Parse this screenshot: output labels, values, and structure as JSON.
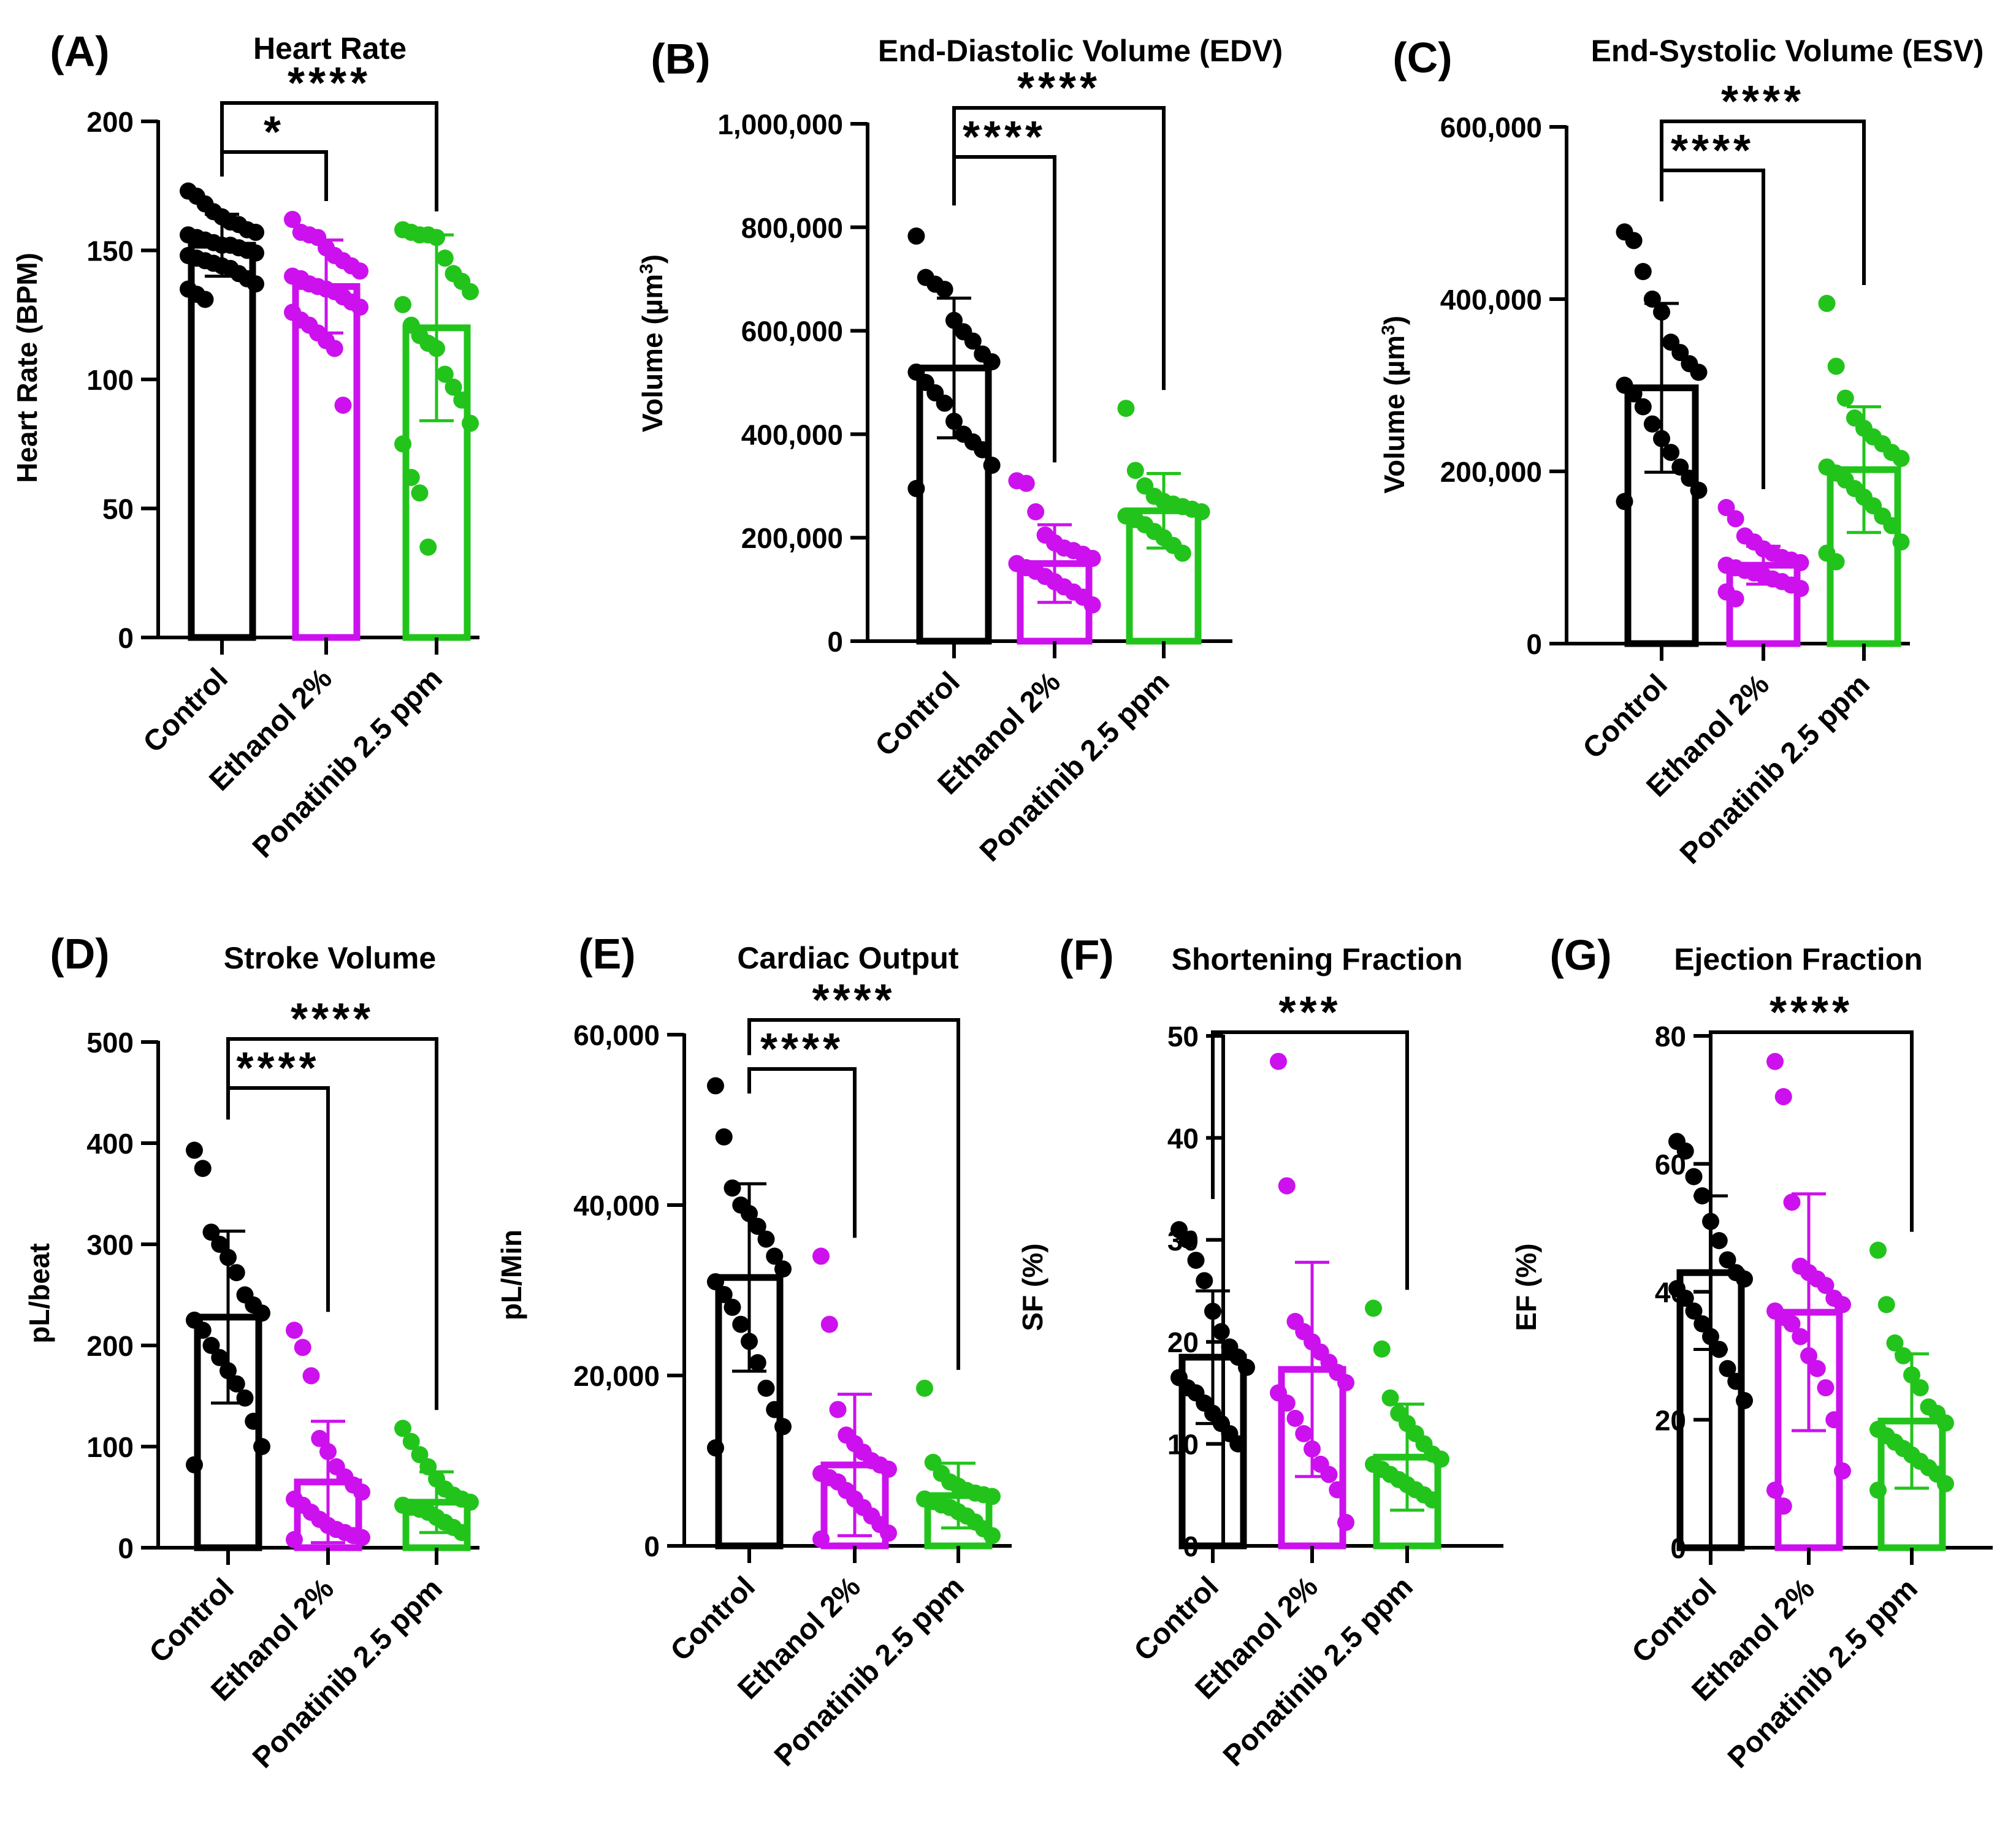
{
  "categories": [
    "Control",
    "Ethanol 2%",
    "Ponatinib 2.5 ppm"
  ],
  "colors": [
    "#000000",
    "#cc11ee",
    "#22c41c"
  ],
  "chart_data": [
    {
      "letter": "(A)",
      "type": "bar",
      "title": "Heart Rate",
      "ylabel": "Heart Rate (BPM)",
      "ylim": [
        0,
        200
      ],
      "ticks": [
        0,
        50,
        100,
        150,
        200
      ],
      "tick_labels": [
        "0",
        "50",
        "100",
        "150",
        "200"
      ],
      "series": [
        {
          "name": "Control",
          "mean": 152,
          "sd": 12,
          "points": [
            173,
            171,
            168,
            165,
            163,
            161,
            160,
            158,
            157,
            156,
            155,
            154,
            153,
            152,
            152,
            151,
            150,
            149,
            148,
            147,
            146,
            145,
            144,
            143,
            141,
            139,
            137,
            135,
            133,
            131
          ]
        },
        {
          "name": "Ethanol 2%",
          "mean": 136,
          "sd": 18,
          "points": [
            162,
            157,
            156,
            155,
            151,
            148,
            146,
            144,
            142,
            140,
            139,
            137,
            136,
            135,
            134,
            132,
            130,
            128,
            126,
            123,
            121,
            118,
            115,
            112,
            90
          ]
        },
        {
          "name": "Ponatinib 2.5 ppm",
          "mean": 120,
          "sd": 36,
          "points": [
            158,
            157,
            156,
            156,
            155,
            147,
            141,
            138,
            134,
            129,
            121,
            117,
            114,
            112,
            102,
            97,
            92,
            83,
            75,
            62,
            56,
            35
          ]
        }
      ],
      "comparisons": [
        {
          "from": 0,
          "to": 1,
          "label": "*"
        },
        {
          "from": 0,
          "to": 2,
          "label": "****"
        }
      ]
    },
    {
      "letter": "(B)",
      "type": "bar",
      "title": "End-Diastolic Volume (EDV)",
      "ylabel": "Volume (µm",
      "ylabel_sup": "3",
      "ylabel_end": ")",
      "ylim": [
        0,
        1000000
      ],
      "ticks": [
        0,
        200000,
        400000,
        600000,
        800000,
        1000000
      ],
      "tick_labels": [
        "0",
        "200,000",
        "400,000",
        "600,000",
        "800,000",
        "1,000,000"
      ],
      "series": [
        {
          "name": "Control",
          "mean": 528000,
          "sd": 135000,
          "points": [
            783000,
            703000,
            690000,
            680000,
            620000,
            598000,
            580000,
            555000,
            540000,
            520000,
            500000,
            480000,
            460000,
            425000,
            400000,
            385000,
            370000,
            340000,
            295000
          ]
        },
        {
          "name": "Ethanol 2%",
          "mean": 150000,
          "sd": 75000,
          "points": [
            310000,
            305000,
            250000,
            205000,
            190000,
            180000,
            175000,
            168000,
            160000,
            150000,
            142000,
            135000,
            125000,
            115000,
            105000,
            95000,
            85000,
            70000
          ]
        },
        {
          "name": "Ponatinib 2.5 ppm",
          "mean": 252000,
          "sd": 72000,
          "points": [
            450000,
            330000,
            300000,
            280000,
            270000,
            265000,
            260000,
            255000,
            250000,
            242000,
            235000,
            225000,
            212000,
            200000,
            185000,
            170000
          ]
        }
      ],
      "comparisons": [
        {
          "from": 0,
          "to": 1,
          "label": "****"
        },
        {
          "from": 0,
          "to": 2,
          "label": "****"
        }
      ]
    },
    {
      "letter": "(C)",
      "type": "bar",
      "title": "End-Systolic Volume (ESV)",
      "ylabel": "Volume (µm",
      "ylabel_sup": "3",
      "ylabel_end": ")",
      "ylim": [
        0,
        600000
      ],
      "ticks": [
        0,
        200000,
        400000,
        600000
      ],
      "tick_labels": [
        "0",
        "200,000",
        "400,000",
        "600,000"
      ],
      "series": [
        {
          "name": "Control",
          "mean": 297000,
          "sd": 98000,
          "points": [
            478000,
            468000,
            432000,
            400000,
            385000,
            350000,
            338000,
            325000,
            315000,
            300000,
            290000,
            275000,
            255000,
            238000,
            222000,
            205000,
            192000,
            178000,
            165000
          ]
        },
        {
          "name": "Ethanol 2%",
          "mean": 91000,
          "sd": 22000,
          "points": [
            158000,
            145000,
            125000,
            118000,
            110000,
            105000,
            100000,
            97000,
            94000,
            91000,
            88000,
            85000,
            82000,
            79000,
            75000,
            72000,
            68000,
            64000,
            60000,
            52000
          ]
        },
        {
          "name": "Ponatinib 2.5 ppm",
          "mean": 202000,
          "sd": 73000,
          "points": [
            395000,
            322000,
            285000,
            262000,
            250000,
            240000,
            232000,
            222000,
            215000,
            205000,
            198000,
            190000,
            180000,
            170000,
            160000,
            148000,
            137000,
            118000,
            105000,
            95000
          ]
        }
      ],
      "comparisons": [
        {
          "from": 0,
          "to": 1,
          "label": "****"
        },
        {
          "from": 0,
          "to": 2,
          "label": "****"
        }
      ]
    },
    {
      "letter": "(D)",
      "type": "bar",
      "title": "Stroke Volume",
      "ylabel": "pL/beat",
      "ylim": [
        0,
        500
      ],
      "ticks": [
        0,
        100,
        200,
        300,
        400,
        500
      ],
      "tick_labels": [
        "0",
        "100",
        "200",
        "300",
        "400",
        "500"
      ],
      "series": [
        {
          "name": "Control",
          "mean": 228,
          "sd": 85,
          "points": [
            393,
            375,
            312,
            300,
            287,
            272,
            250,
            240,
            232,
            225,
            215,
            200,
            188,
            175,
            162,
            148,
            125,
            100,
            82
          ]
        },
        {
          "name": "Ethanol 2%",
          "mean": 65,
          "sd": 60,
          "points": [
            215,
            198,
            170,
            108,
            95,
            80,
            70,
            62,
            55,
            48,
            42,
            35,
            28,
            22,
            18,
            15,
            12,
            10,
            8
          ]
        },
        {
          "name": "Ponatinib 2.5 ppm",
          "mean": 45,
          "sd": 30,
          "points": [
            118,
            105,
            92,
            80,
            68,
            58,
            52,
            48,
            45,
            42,
            40,
            38,
            35,
            30,
            25,
            20,
            15
          ]
        }
      ],
      "comparisons": [
        {
          "from": 0,
          "to": 1,
          "label": "****"
        },
        {
          "from": 0,
          "to": 2,
          "label": "****"
        }
      ]
    },
    {
      "letter": "(E)",
      "type": "bar",
      "title": "Cardiac Output",
      "ylabel": "pL/Min",
      "ylim": [
        0,
        60000
      ],
      "ticks": [
        0,
        20000,
        40000,
        60000
      ],
      "tick_labels": [
        "0",
        "20,000",
        "40,000",
        "60,000"
      ],
      "series": [
        {
          "name": "Control",
          "mean": 31500,
          "sd": 11000,
          "points": [
            54000,
            48000,
            42000,
            40000,
            39000,
            37500,
            36000,
            34000,
            32500,
            31000,
            29500,
            28000,
            26000,
            24000,
            21500,
            18500,
            16000,
            14000,
            11500
          ]
        },
        {
          "name": "Ethanol 2%",
          "mean": 9500,
          "sd": 8300,
          "points": [
            34000,
            26000,
            16000,
            13000,
            12000,
            11000,
            10000,
            9500,
            9000,
            8500,
            8000,
            7500,
            6500,
            5500,
            4500,
            3500,
            2500,
            1500,
            800
          ]
        },
        {
          "name": "Ponatinib 2.5 ppm",
          "mean": 5900,
          "sd": 3800,
          "points": [
            18500,
            9800,
            8500,
            7500,
            7000,
            6500,
            6200,
            6000,
            5800,
            5500,
            5200,
            4800,
            4500,
            4000,
            3500,
            2800,
            2000,
            1200
          ]
        }
      ],
      "comparisons": [
        {
          "from": 0,
          "to": 1,
          "label": "****"
        },
        {
          "from": 0,
          "to": 2,
          "label": "****"
        }
      ]
    },
    {
      "letter": "(F)",
      "type": "bar",
      "title": "Shortening Fraction",
      "ylabel": "SF (%)",
      "ylim": [
        0,
        50
      ],
      "ticks": [
        0,
        10,
        20,
        30,
        40,
        50
      ],
      "tick_labels": [
        "0",
        "10",
        "20",
        "30",
        "40",
        "50"
      ],
      "series": [
        {
          "name": "Control",
          "mean": 18.5,
          "sd": 6.5,
          "points": [
            31,
            30,
            28,
            26,
            23,
            21,
            19.5,
            18.5,
            17.5,
            16.5,
            15.5,
            15,
            14,
            13,
            12,
            11,
            10
          ]
        },
        {
          "name": "Ethanol 2%",
          "mean": 17.3,
          "sd": 10.5,
          "points": [
            47.5,
            35.3,
            22,
            21,
            20,
            19,
            18,
            17,
            16,
            15,
            14,
            12.5,
            11,
            9.5,
            8,
            7,
            5.5,
            2.3
          ]
        },
        {
          "name": "Ponatinib 2.5 ppm",
          "mean": 8.7,
          "sd": 5.2,
          "points": [
            23.3,
            19.3,
            14.5,
            13,
            12,
            11,
            10,
            9,
            8.5,
            8,
            7.5,
            7,
            6.5,
            6,
            5.5,
            5,
            4.5
          ]
        }
      ],
      "comparisons": [
        {
          "from": 0,
          "to": 2,
          "label": "***"
        }
      ]
    },
    {
      "letter": "(G)",
      "type": "bar",
      "title": "Ejection Fraction",
      "ylabel": "EF (%)",
      "ylim": [
        0,
        80
      ],
      "ticks": [
        0,
        20,
        40,
        60,
        80
      ],
      "tick_labels": [
        "0",
        "20",
        "40",
        "60",
        "80"
      ],
      "series": [
        {
          "name": "Control",
          "mean": 43,
          "sd": 12,
          "points": [
            63.5,
            62,
            58,
            55,
            51,
            48,
            45,
            43,
            42,
            40.5,
            39,
            37,
            35,
            33,
            31,
            28,
            26,
            23
          ]
        },
        {
          "name": "Ethanol 2%",
          "mean": 36.8,
          "sd": 18.5,
          "points": [
            76,
            70.5,
            54,
            44,
            43,
            42,
            41,
            39,
            38,
            37,
            36,
            35,
            33,
            30,
            28,
            25,
            20,
            12,
            9,
            6.5
          ]
        },
        {
          "name": "Ponatinib 2.5 ppm",
          "mean": 19.8,
          "sd": 10.5,
          "points": [
            46.5,
            38,
            32,
            30,
            27,
            25,
            22,
            21,
            19.5,
            18.5,
            17.5,
            16.5,
            15.5,
            14.5,
            13.5,
            12.5,
            11.5,
            10,
            9
          ]
        }
      ],
      "comparisons": [
        {
          "from": 0,
          "to": 2,
          "label": "****"
        }
      ]
    }
  ]
}
